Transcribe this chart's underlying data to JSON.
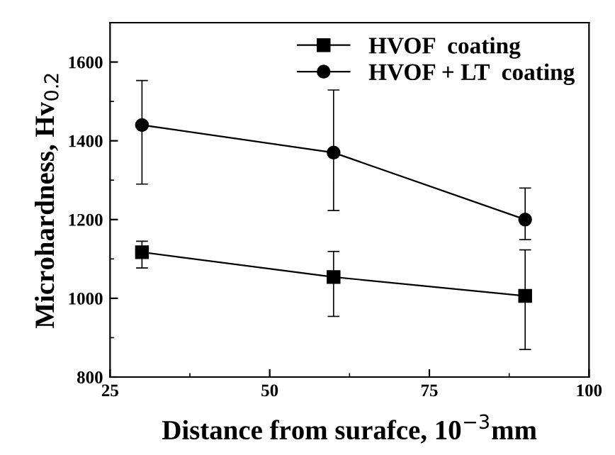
{
  "chart_data": {
    "type": "line",
    "xlabel": "Distance from surafce, 10$^{−3}$mm",
    "ylabel": "Microhardness, Hv$_{0.2}$",
    "x": [
      30,
      60,
      90
    ],
    "series": [
      {
        "name": "HVOF  coating",
        "color": "#000000",
        "marker": "square",
        "values": [
          1117,
          1054,
          1006
        ],
        "errors": [
          [
            1077,
            1145
          ],
          [
            954,
            1119
          ],
          [
            870,
            1123
          ]
        ]
      },
      {
        "name": "HVOF + LT  coating",
        "color": "#000000",
        "marker": "circle",
        "values": [
          1440,
          1370,
          1200
        ],
        "errors": [
          [
            1290,
            1553
          ],
          [
            1223,
            1529
          ],
          [
            1149,
            1280
          ]
        ]
      }
    ],
    "xlim": [
      25,
      100
    ],
    "xticks": [
      25,
      {
        "value": 37.5,
        "label": null
      },
      50,
      {
        "value": 62.5,
        "label": null
      },
      75,
      {
        "value": 87.5,
        "label": null
      },
      100
    ],
    "ylim": [
      800,
      1700
    ],
    "yticks": [
      800,
      {
        "value": 900,
        "label": null
      },
      1000,
      {
        "value": 1100,
        "label": null
      },
      1200,
      {
        "value": 1300,
        "label": null
      },
      1400,
      {
        "value": 1500,
        "label": null
      },
      1600
    ],
    "legend": "top right",
    "grid": false,
    "line_style": "solid"
  }
}
